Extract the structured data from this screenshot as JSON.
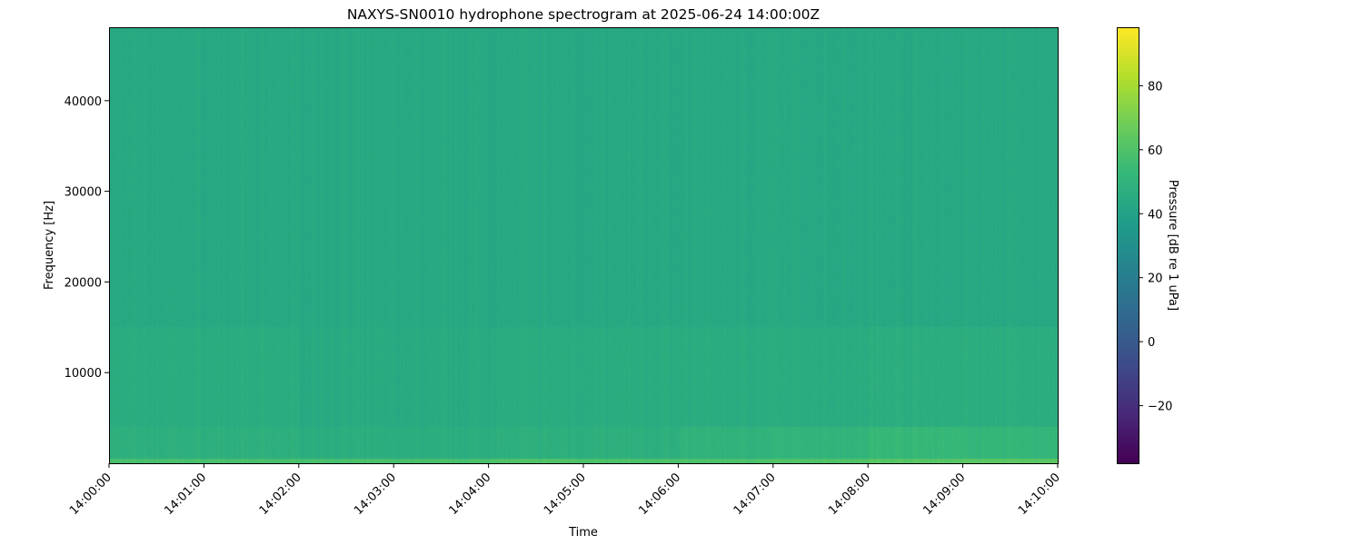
{
  "chart_data": {
    "type": "heatmap",
    "title": "NAXYS-SN0010 hydrophone spectrogram at 2025-06-24 14:00:00Z",
    "xlabel": "Time",
    "ylabel": "Frequency [Hz]",
    "colorbar_label": "Pressure [dB re 1 uPa]",
    "colormap": "viridis",
    "x_ticks": [
      "14:00:00",
      "14:01:00",
      "14:02:00",
      "14:03:00",
      "14:04:00",
      "14:05:00",
      "14:06:00",
      "14:07:00",
      "14:08:00",
      "14:09:00",
      "14:10:00"
    ],
    "y_ticks": [
      10000,
      20000,
      30000,
      40000
    ],
    "y_tick_labels": [
      "10000",
      "20000",
      "30000",
      "40000"
    ],
    "ylim": [
      0,
      48000
    ],
    "colorbar_ticks": [
      -20,
      0,
      20,
      40,
      60,
      80
    ],
    "colorbar_tick_labels": [
      "−20",
      "0",
      "20",
      "40",
      "60",
      "80"
    ],
    "clim": [
      -38,
      98
    ],
    "grid": false,
    "time_bins_minutes": [
      0,
      1,
      2,
      3,
      4,
      5,
      6,
      7,
      8,
      9
    ],
    "frequency_bands_hz": [
      [
        0,
        500
      ],
      [
        500,
        4000
      ],
      [
        4000,
        15000
      ],
      [
        15000,
        48000
      ]
    ],
    "levels_db": [
      [
        58,
        58,
        58,
        58,
        60,
        59,
        59,
        60,
        62,
        63
      ],
      [
        48,
        48,
        47,
        47,
        48,
        48,
        50,
        51,
        53,
        52
      ],
      [
        46,
        46,
        45,
        45,
        46,
        46,
        46,
        46,
        47,
        47
      ],
      [
        44,
        44,
        44,
        44,
        44,
        44,
        44,
        44,
        44,
        44
      ]
    ]
  }
}
